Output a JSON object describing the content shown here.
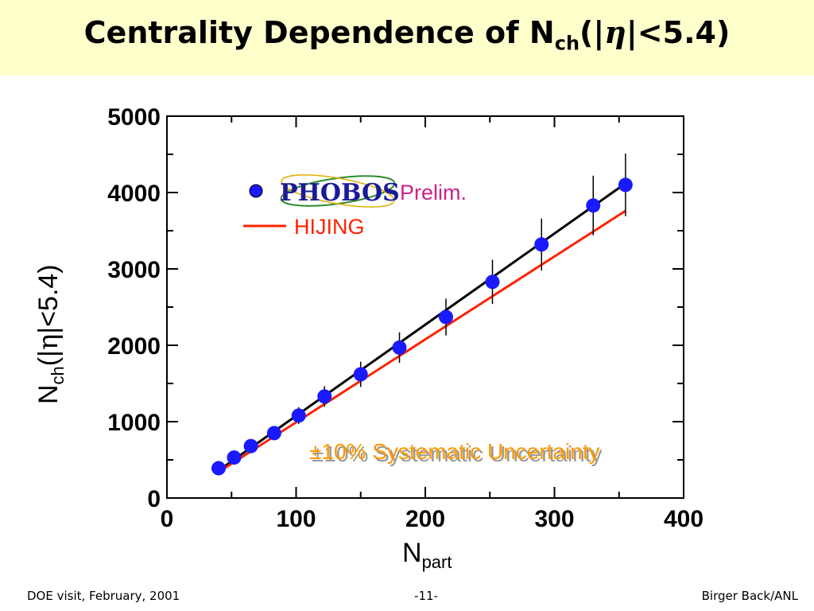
{
  "header": {
    "title_prefix": "Centrality Dependence of N",
    "title_sub": "ch",
    "title_open": "(|",
    "title_eta": "η",
    "title_close": "|<5.4)"
  },
  "footer": {
    "left": "DOE visit, February, 2001",
    "center": "-11-",
    "right": "Birger Back/ANL"
  },
  "legend": {
    "phobos_logo_text": "PHOBOS",
    "phobos_label": "Prelim.",
    "hijing_label": "HIJING"
  },
  "annotation": "±10% Systematic Uncertainty",
  "colors": {
    "title_bg": "#ffffcc",
    "data_points": "#1a1aff",
    "fit_line": "#000000",
    "hijing_line": "#ff2200",
    "prelim_text": "#cc2288",
    "annotation_text": "#ff9900"
  },
  "chart_data": {
    "type": "scatter",
    "xlabel": "N",
    "xlabel_sub": "part",
    "ylabel": "N",
    "ylabel_sub": "ch",
    "ylabel_rest_open": "(|",
    "ylabel_eta": "η",
    "ylabel_rest_close": "|<5.4)",
    "xlim": [
      0,
      400
    ],
    "ylim": [
      0,
      5000
    ],
    "xticks": [
      0,
      100,
      200,
      300,
      400
    ],
    "yticks": [
      0,
      1000,
      2000,
      3000,
      4000,
      5000
    ],
    "legend_position": "top-left",
    "series": [
      {
        "name": "PHOBOS Prelim.",
        "kind": "points",
        "x": [
          40,
          52,
          65,
          83,
          102,
          122,
          150,
          180,
          216,
          252,
          290,
          330,
          355
        ],
        "y": [
          390,
          530,
          680,
          850,
          1080,
          1330,
          1620,
          1970,
          2370,
          2830,
          3320,
          3830,
          4100
        ],
        "err": [
          40,
          55,
          70,
          90,
          110,
          135,
          165,
          200,
          240,
          290,
          340,
          390,
          410
        ]
      },
      {
        "name": "fit",
        "kind": "line",
        "x": [
          40,
          355
        ],
        "y": [
          360,
          4120
        ]
      },
      {
        "name": "HIJING",
        "kind": "line",
        "x": [
          40,
          355
        ],
        "y": [
          340,
          3760
        ]
      }
    ]
  }
}
